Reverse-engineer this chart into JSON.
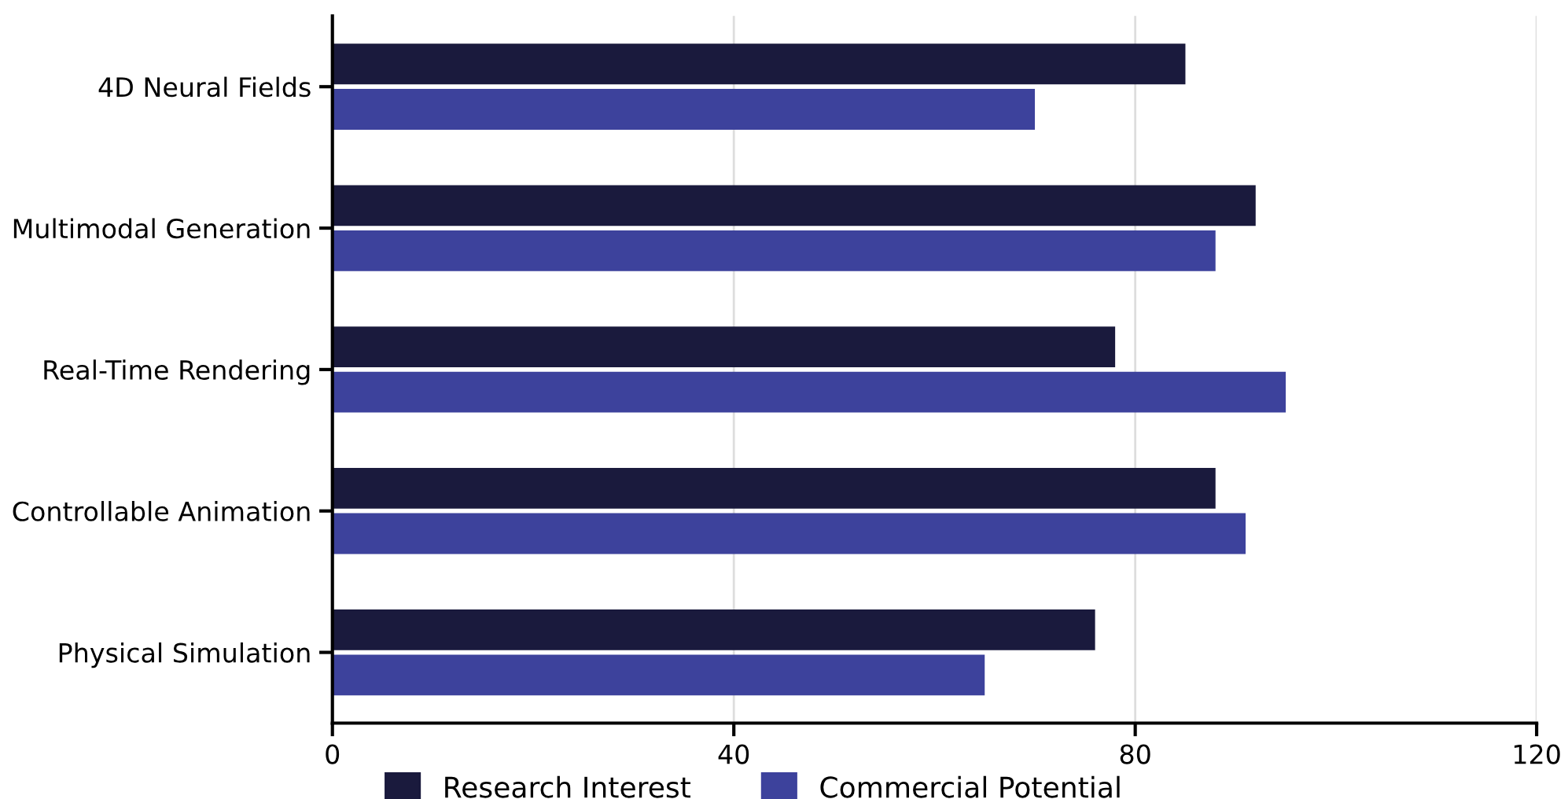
{
  "chart_data": {
    "type": "bar",
    "orientation": "horizontal",
    "categories": [
      "4D Neural Fields",
      "Multimodal Generation",
      "Real-Time Rendering",
      "Controllable Animation",
      "Physical Simulation"
    ],
    "series": [
      {
        "name": "Research Interest",
        "color": "#1a1a3d",
        "values": [
          85,
          92,
          78,
          88,
          76
        ]
      },
      {
        "name": "Commercial Potential",
        "color": "#3d429c",
        "values": [
          70,
          88,
          95,
          91,
          65
        ]
      }
    ],
    "xlim": [
      0,
      120
    ],
    "xticks": [
      0,
      40,
      80,
      120
    ],
    "grid": "x",
    "legend": "bottom"
  }
}
